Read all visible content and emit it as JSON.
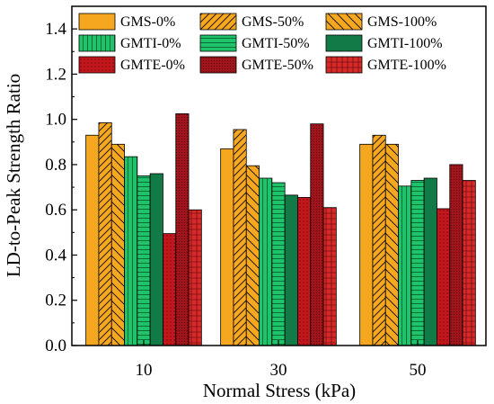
{
  "chart_data": {
    "type": "bar",
    "xlabel": "Normal Stress (kPa)",
    "ylabel": "LD-to-Peak Strength Ratio",
    "ylim": [
      0,
      1.5
    ],
    "yticks": [
      "0.0",
      "0.2",
      "0.4",
      "0.6",
      "0.8",
      "1.0",
      "1.2",
      "1.4"
    ],
    "categories": [
      "10",
      "30",
      "50"
    ],
    "grid": false,
    "legend_position": "top",
    "series": [
      {
        "name": "GMS-0%",
        "color": "#F5A81F",
        "pattern": "none",
        "values": [
          0.93,
          0.87,
          0.89
        ]
      },
      {
        "name": "GMS-50%",
        "color": "#F5A81F",
        "pattern": "diag-right",
        "values": [
          0.985,
          0.955,
          0.93
        ]
      },
      {
        "name": "GMS-100%",
        "color": "#F5A81F",
        "pattern": "diag-left",
        "values": [
          0.89,
          0.795,
          0.89
        ]
      },
      {
        "name": "GMTI-0%",
        "color": "#1FC46A",
        "pattern": "vertical",
        "values": [
          0.835,
          0.74,
          0.705
        ]
      },
      {
        "name": "GMTI-50%",
        "color": "#1FC46A",
        "pattern": "horizontal",
        "values": [
          0.75,
          0.72,
          0.73
        ]
      },
      {
        "name": "GMTI-100%",
        "color": "#117A47",
        "pattern": "none",
        "values": [
          0.76,
          0.665,
          0.74
        ]
      },
      {
        "name": "GMTE-0%",
        "color": "#C4161C",
        "pattern": "dots",
        "values": [
          0.495,
          0.655,
          0.605
        ]
      },
      {
        "name": "GMTE-50%",
        "color": "#A0141B",
        "pattern": "fine-dots",
        "values": [
          1.025,
          0.98,
          0.8
        ]
      },
      {
        "name": "GMTE-100%",
        "color": "#D62A2A",
        "pattern": "grid",
        "values": [
          0.6,
          0.61,
          0.73
        ]
      }
    ]
  }
}
